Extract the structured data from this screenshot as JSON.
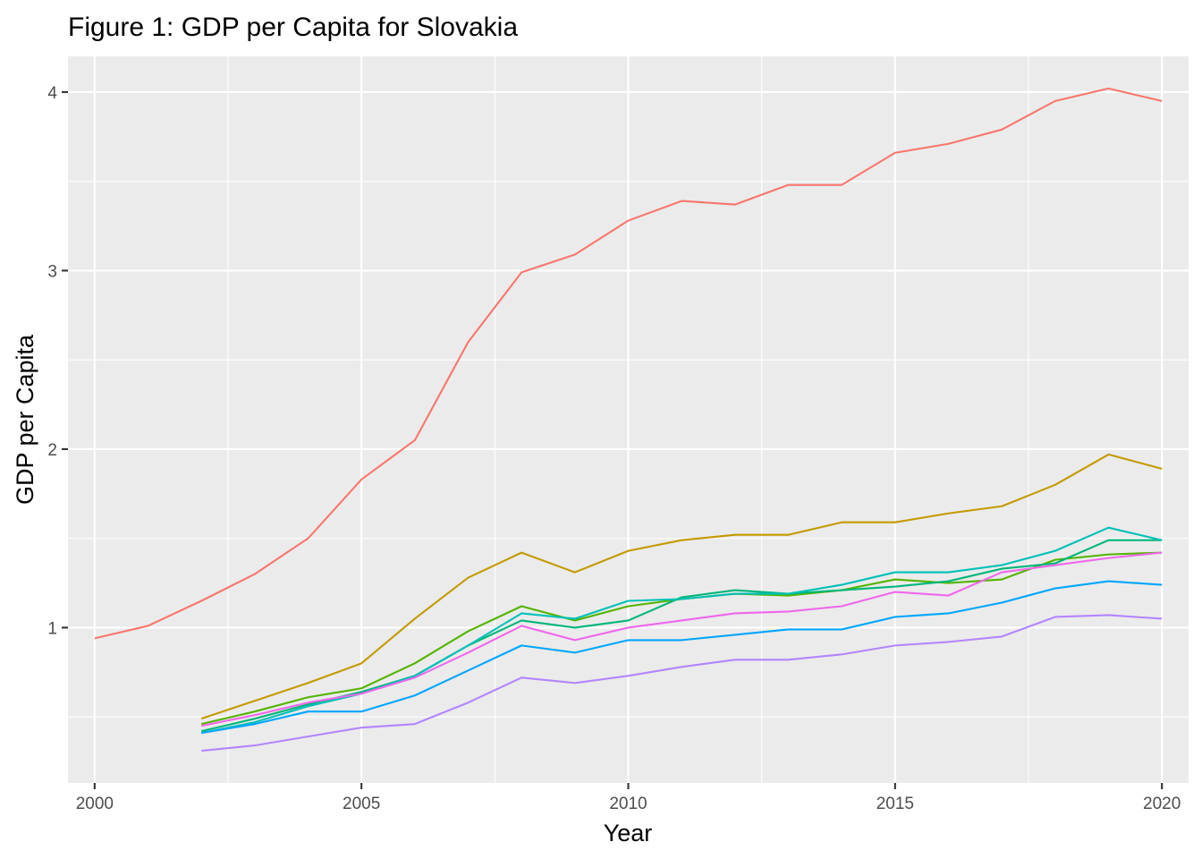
{
  "chart_data": {
    "type": "line",
    "title": "Figure 1: GDP per Capita for Slovakia",
    "xlabel": "Year",
    "ylabel": "GDP per Capita",
    "xlim": [
      1999.5,
      2020.5
    ],
    "ylim": [
      0.13,
      4.2
    ],
    "xticks": [
      2000,
      2005,
      2010,
      2015,
      2020
    ],
    "yticks": [
      1,
      2,
      3,
      4
    ],
    "grid": true,
    "legend": "none",
    "x": [
      2000,
      2001,
      2002,
      2003,
      2004,
      2005,
      2006,
      2007,
      2008,
      2009,
      2010,
      2011,
      2012,
      2013,
      2014,
      2015,
      2016,
      2017,
      2018,
      2019,
      2020
    ],
    "series": [
      {
        "color": "#F8766D",
        "values": [
          0.94,
          1.01,
          1.15,
          1.3,
          1.5,
          1.83,
          2.05,
          2.6,
          2.99,
          3.09,
          3.28,
          3.39,
          3.37,
          3.48,
          3.48,
          3.66,
          3.71,
          3.79,
          3.95,
          4.02,
          3.95
        ]
      },
      {
        "color": "#C49A00",
        "values": [
          null,
          null,
          0.49,
          0.59,
          0.69,
          0.8,
          1.05,
          1.28,
          1.42,
          1.31,
          1.43,
          1.49,
          1.52,
          1.52,
          1.59,
          1.59,
          1.64,
          1.68,
          1.8,
          1.97,
          1.89
        ]
      },
      {
        "color": "#53B400",
        "values": [
          null,
          null,
          0.46,
          0.53,
          0.61,
          0.66,
          0.8,
          0.98,
          1.12,
          1.04,
          1.12,
          1.16,
          1.19,
          1.18,
          1.21,
          1.27,
          1.25,
          1.27,
          1.38,
          1.41,
          1.42
        ]
      },
      {
        "color": "#00B67A",
        "values": [
          null,
          null,
          0.42,
          0.49,
          0.57,
          0.64,
          0.73,
          0.9,
          1.04,
          1.0,
          1.04,
          1.17,
          1.21,
          1.19,
          1.21,
          1.23,
          1.26,
          1.33,
          1.36,
          1.49,
          1.49
        ]
      },
      {
        "color": "#00C0B8",
        "values": [
          null,
          null,
          0.41,
          0.47,
          0.56,
          0.63,
          0.73,
          0.9,
          1.08,
          1.05,
          1.15,
          1.16,
          1.19,
          1.19,
          1.24,
          1.31,
          1.31,
          1.35,
          1.43,
          1.56,
          1.49
        ]
      },
      {
        "color": "#00A6FF",
        "values": [
          null,
          null,
          0.41,
          0.46,
          0.53,
          0.53,
          0.62,
          0.76,
          0.9,
          0.86,
          0.93,
          0.93,
          0.96,
          0.99,
          0.99,
          1.06,
          1.08,
          1.14,
          1.22,
          1.26,
          1.24
        ]
      },
      {
        "color": "#B385FF",
        "values": [
          null,
          null,
          0.31,
          0.34,
          0.39,
          0.44,
          0.46,
          0.58,
          0.72,
          0.69,
          0.73,
          0.78,
          0.82,
          0.82,
          0.85,
          0.9,
          0.92,
          0.95,
          1.06,
          1.07,
          1.05
        ]
      },
      {
        "color": "#EF67EB",
        "values": [
          null,
          null,
          0.45,
          0.51,
          0.58,
          0.63,
          0.72,
          0.86,
          1.01,
          0.93,
          1.0,
          1.04,
          1.08,
          1.09,
          1.12,
          1.2,
          1.18,
          1.31,
          1.35,
          1.39,
          1.42
        ]
      }
    ]
  }
}
